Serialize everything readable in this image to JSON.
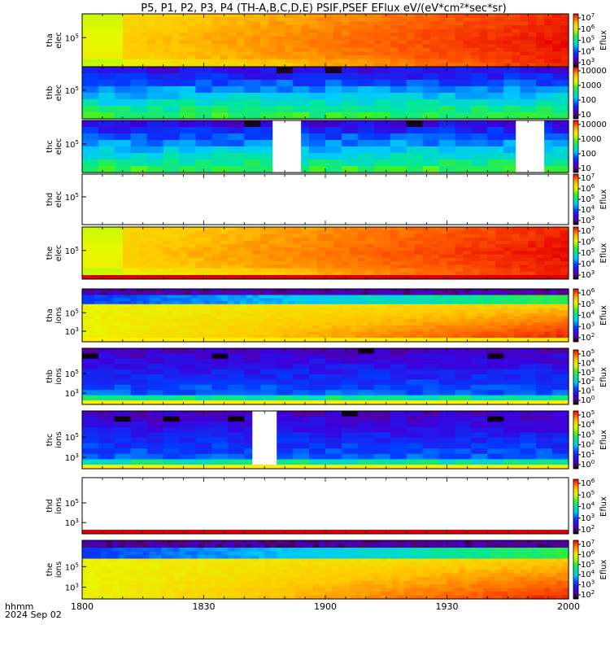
{
  "title": "P5, P1, P2, P3, P4 (TH-A,B,C,D,E) PSIF,PSEF EFlux eV/(eV*cm²*sec*sr)",
  "time_label": "hhmm",
  "date_label": "2024 Sep 02",
  "colors": {
    "background": "#ffffff",
    "axis": "#000000",
    "gap_white": "#ffffff"
  },
  "chart_data": {
    "type": "heatmap",
    "x": {
      "ticks": [
        "1800",
        "1830",
        "1900",
        "1930",
        "2000"
      ],
      "range_hhmm": [
        "1800",
        "2000"
      ],
      "minor_ticks_per_major": 6
    },
    "panels": [
      {
        "id": "tha-elec",
        "ylabel": [
          "tha",
          "elec"
        ],
        "ytick": "10^5",
        "colorbar_label": "Eflux",
        "colorbar_ticks": [
          "10^7",
          "10^6",
          "10^5",
          "10^4",
          "10^3"
        ],
        "data_gaps": [],
        "bottom_stripe": "",
        "scheme": "hot_elec"
      },
      {
        "id": "thb-elec",
        "ylabel": [
          "thb",
          "elec"
        ],
        "ytick": "10^5",
        "colorbar_label": "",
        "colorbar_ticks": [
          "10000",
          "1000",
          "100",
          "10"
        ],
        "data_gaps": [],
        "bottom_stripe": "",
        "scheme": "cool_blocks"
      },
      {
        "id": "thc-elec",
        "ylabel": [
          "thc",
          "elec"
        ],
        "ytick": "10^5",
        "colorbar_label": "",
        "colorbar_ticks": [
          "10000",
          "1000",
          "100",
          "10"
        ],
        "data_gaps": [
          [
            "1847",
            "1854"
          ],
          [
            "1947",
            "1954"
          ]
        ],
        "bottom_stripe": "",
        "scheme": "cool_blocks"
      },
      {
        "id": "thd-elec",
        "ylabel": [
          "thd",
          "elec"
        ],
        "ytick": "10^5",
        "colorbar_label": "Eflux",
        "colorbar_ticks": [
          "10^7",
          "10^6",
          "10^5",
          "10^4",
          "10^3"
        ],
        "data_gaps": [
          [
            "1800",
            "2000"
          ]
        ],
        "bottom_stripe": "",
        "scheme": "empty"
      },
      {
        "id": "the-elec",
        "ylabel": [
          "the",
          "elec"
        ],
        "ytick": "10^5",
        "colorbar_label": "Eflux",
        "colorbar_ticks": [
          "10^7",
          "10^6",
          "10^5",
          "10^4",
          "10^3"
        ],
        "data_gaps": [],
        "bottom_stripe": "red",
        "scheme": "hot_elec"
      },
      {
        "id": "tha-ions",
        "ylabel": [
          "tha",
          "ions"
        ],
        "ytick": "10^5",
        "ytick2": "10^3",
        "colorbar_label": "Eflux",
        "colorbar_ticks": [
          "10^6",
          "10^5",
          "10^4",
          "10^3",
          "10^2"
        ],
        "data_gaps": [],
        "bottom_stripe": "yellow",
        "scheme": "ions_full"
      },
      {
        "id": "thb-ions",
        "ylabel": [
          "thb",
          "ions"
        ],
        "ytick": "10^5",
        "ytick2": "10^3",
        "colorbar_label": "Eflux",
        "colorbar_ticks": [
          "10^5",
          "10^4",
          "10^3",
          "10^2",
          "10^1",
          "10^0"
        ],
        "data_gaps": [],
        "bottom_stripe": "yellow",
        "scheme": "ions_blue"
      },
      {
        "id": "thc-ions",
        "ylabel": [
          "thc",
          "ions"
        ],
        "ytick": "10^5",
        "ytick2": "10^3",
        "colorbar_label": "Eflux",
        "colorbar_ticks": [
          "10^5",
          "10^4",
          "10^3",
          "10^2",
          "10^1",
          "10^0"
        ],
        "data_gaps": [
          [
            "1842",
            "1848"
          ]
        ],
        "bottom_stripe": "yellow",
        "scheme": "ions_blue"
      },
      {
        "id": "thd-ions",
        "ylabel": [
          "thd",
          "ions"
        ],
        "ytick": "10^5",
        "ytick2": "10^3",
        "colorbar_label": "Eflux",
        "colorbar_ticks": [
          "10^6",
          "10^5",
          "10^4",
          "10^3",
          "10^2"
        ],
        "data_gaps": [
          [
            "1800",
            "2000"
          ]
        ],
        "bottom_stripe": "red",
        "scheme": "empty"
      },
      {
        "id": "the-ions",
        "ylabel": [
          "the",
          "ions"
        ],
        "ytick": "10^5",
        "ytick2": "10^3",
        "colorbar_label": "Eflux",
        "colorbar_ticks": [
          "10^7",
          "10^6",
          "10^5",
          "10^4",
          "10^3",
          "10^2"
        ],
        "data_gaps": [],
        "bottom_stripe": "",
        "scheme": "ions_full"
      }
    ]
  }
}
